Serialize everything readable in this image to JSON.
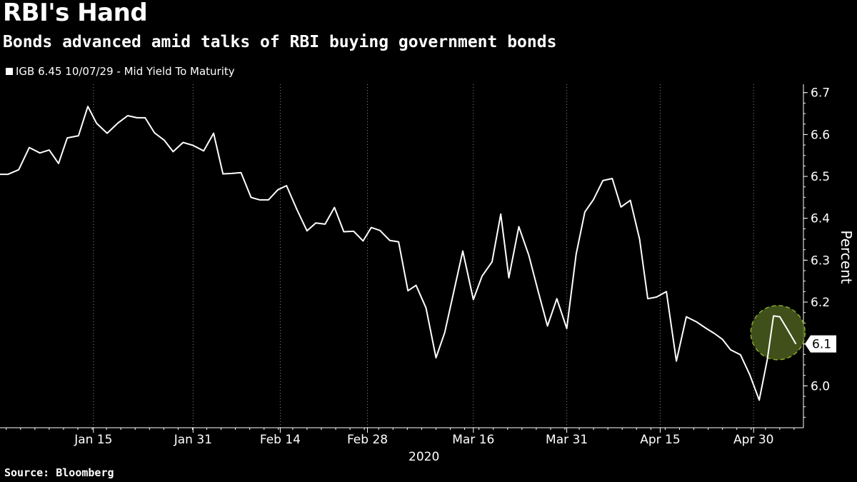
{
  "chart_data": {
    "type": "line",
    "title": "RBI's Hand",
    "subtitle": "Bonds advanced amid talks of RBI buying government bonds",
    "legend": [
      "IGB 6.45 10/07/29 - Mid Yield To Maturity"
    ],
    "ylabel": "Percent",
    "xlabel_year": "2020",
    "source": "Source: Bloomberg",
    "ylim": [
      5.9,
      6.72
    ],
    "yticks": [
      6.0,
      6.1,
      6.2,
      6.3,
      6.4,
      6.5,
      6.6,
      6.7
    ],
    "ytick_labels": [
      "6.0",
      "6.1",
      "6.2",
      "6.3",
      "6.4",
      "6.5",
      "6.6",
      "6.7"
    ],
    "xlim": [
      0,
      129
    ],
    "xticks": [
      15,
      31,
      45,
      59,
      76,
      91,
      106,
      121
    ],
    "xtick_labels": [
      "Jan 15",
      "Jan 31",
      "Feb 14",
      "Feb 28",
      "Mar 16",
      "Mar 31",
      "Apr 15",
      "Apr 30"
    ],
    "last_value_label": "6.1",
    "highlight": {
      "x": 124.9,
      "y": 6.127
    },
    "series": [
      {
        "name": "IGB 6.45 10/07/29 - Mid Yield To Maturity",
        "x": [
          0,
          1.3,
          3,
          4.7,
          6.4,
          7.9,
          9.4,
          10.8,
          12.6,
          14.1,
          15.5,
          17.2,
          18.9,
          20.5,
          22,
          23.3,
          24.8,
          26.4,
          27.8,
          29.4,
          31,
          32.7,
          34.3,
          35.8,
          37.2,
          38.7,
          40.3,
          41.7,
          43.1,
          44.6,
          46,
          47.7,
          49.3,
          50.7,
          52.2,
          53.7,
          55.2,
          56.8,
          58.3,
          59.6,
          61,
          62.6,
          64,
          65.5,
          66.8,
          68.4,
          70,
          71.4,
          72.9,
          74.3,
          76,
          77.4,
          79,
          80.4,
          81.7,
          83.3,
          84.9,
          86.4,
          87.9,
          89.4,
          91,
          92.5,
          93.9,
          95.3,
          96.8,
          98.3,
          99.7,
          101.2,
          102.7,
          104,
          105.4,
          107,
          108.6,
          110.2,
          111.8,
          113.4,
          114.7,
          116,
          117.3,
          118.9,
          120.4,
          121.9,
          123.2,
          124.2,
          125.2,
          126.5,
          127.8
        ],
        "values": [
          6.505,
          6.505,
          6.516,
          6.569,
          6.556,
          6.563,
          6.531,
          6.592,
          6.597,
          6.667,
          6.627,
          6.603,
          6.627,
          6.645,
          6.64,
          6.64,
          6.604,
          6.586,
          6.559,
          6.581,
          6.574,
          6.561,
          6.603,
          6.506,
          6.507,
          6.509,
          6.45,
          6.444,
          6.444,
          6.468,
          6.478,
          6.42,
          6.37,
          6.389,
          6.386,
          6.426,
          6.368,
          6.369,
          6.346,
          6.378,
          6.371,
          6.347,
          6.344,
          6.227,
          6.24,
          6.186,
          6.067,
          6.127,
          6.228,
          6.322,
          6.206,
          6.262,
          6.296,
          6.41,
          6.258,
          6.38,
          6.312,
          6.226,
          6.143,
          6.208,
          6.137,
          6.314,
          6.415,
          6.445,
          6.49,
          6.495,
          6.427,
          6.443,
          6.35,
          6.208,
          6.212,
          6.225,
          6.059,
          6.165,
          6.153,
          6.137,
          6.125,
          6.111,
          6.086,
          6.074,
          6.026,
          5.966,
          6.063,
          6.167,
          6.165,
          6.133,
          6.1
        ]
      }
    ]
  }
}
